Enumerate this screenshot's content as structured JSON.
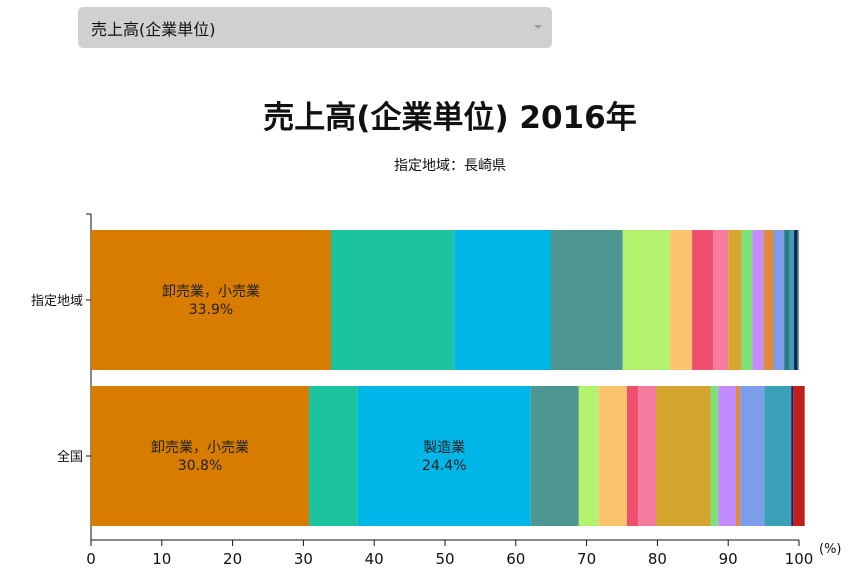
{
  "dropdown": {
    "selected": "売上高(企業単位)"
  },
  "header": {
    "title": "売上高(企業単位) 2016年",
    "subtitle": "指定地域：長崎県"
  },
  "colors": {
    "segments": [
      "#d87c00",
      "#1bc49e",
      "#00b5e8",
      "#4e9692",
      "#b4f36d",
      "#fcc36d",
      "#f0506e",
      "#f57c9e",
      "#d4a630",
      "#7ee07a",
      "#c28cff",
      "#e18a3d",
      "#7c9ee8",
      "#2b7a8a",
      "#3aa0b8",
      "#1d1d6b",
      "#5cb85c",
      "#c0201c"
    ]
  },
  "chart_data": {
    "type": "bar",
    "orientation": "horizontal",
    "stacked": true,
    "xlim": [
      0,
      100
    ],
    "xticks": [
      "0",
      "10",
      "20",
      "30",
      "40",
      "50",
      "60",
      "70",
      "80",
      "90",
      "100"
    ],
    "xunit": "(%)",
    "categories": [
      "指定地域",
      "全国"
    ],
    "rows": [
      {
        "label": "指定地域",
        "values": [
          33.9,
          17.4,
          13.6,
          10.2,
          6.7,
          3.1,
          3.0,
          2.1,
          1.9,
          1.5,
          1.6,
          1.4,
          1.5,
          0.8,
          0.6,
          0.5,
          0.2
        ],
        "color_idx": [
          0,
          1,
          2,
          3,
          4,
          5,
          6,
          7,
          8,
          9,
          10,
          11,
          12,
          13,
          14,
          15,
          16
        ]
      },
      {
        "label": "全国",
        "values": [
          30.8,
          6.9,
          24.4,
          6.8,
          2.8,
          4.0,
          1.6,
          2.5,
          7.7,
          1.1,
          2.5,
          0.6,
          3.4,
          3.8,
          0.3,
          1.6
        ],
        "color_idx": [
          0,
          1,
          2,
          3,
          4,
          5,
          6,
          7,
          8,
          9,
          10,
          11,
          12,
          14,
          15,
          17
        ]
      }
    ],
    "data_labels": [
      {
        "row": 0,
        "segment": 0,
        "name": "卸売業，小売業",
        "value": "33.9%"
      },
      {
        "row": 1,
        "segment": 0,
        "name": "卸売業，小売業",
        "value": "30.8%"
      },
      {
        "row": 1,
        "segment": 2,
        "name": "製造業",
        "value": "24.4%"
      }
    ]
  }
}
